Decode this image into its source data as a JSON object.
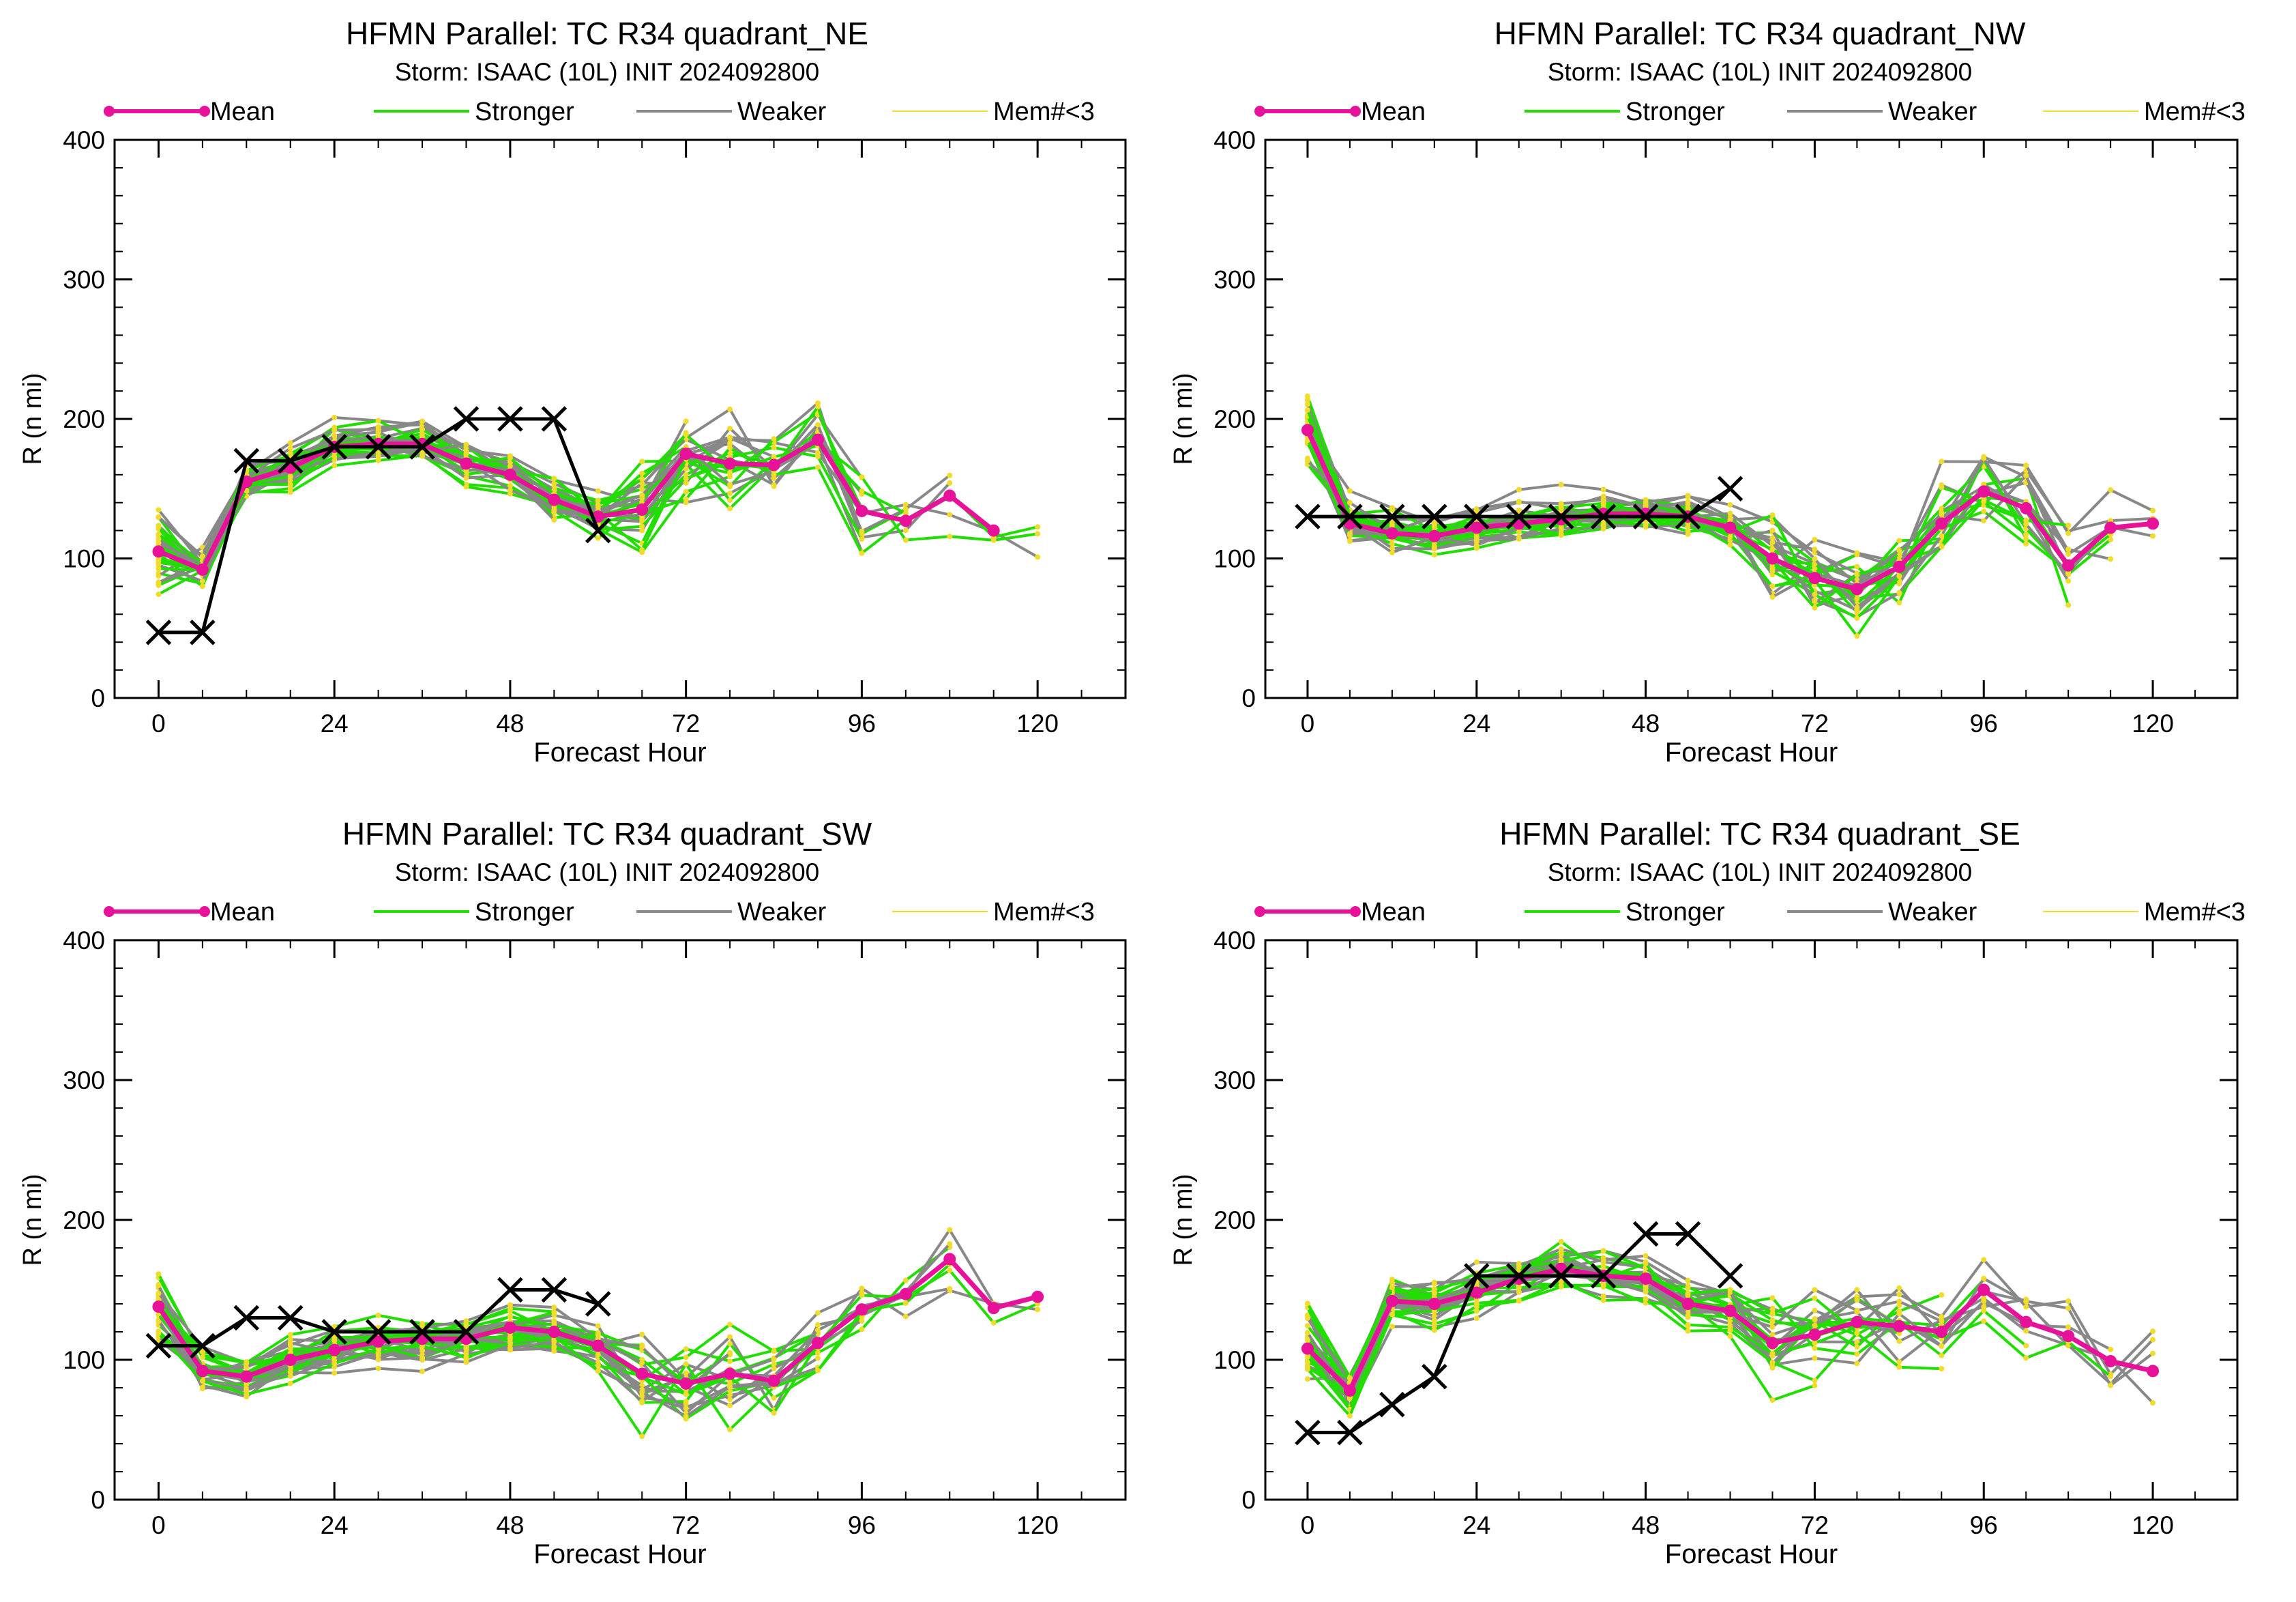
{
  "figure": {
    "panel_count": 4,
    "legend": [
      {
        "label": "Mean",
        "color": "#e8119a",
        "marker": "dot"
      },
      {
        "label": "Stronger",
        "color": "#22dd00"
      },
      {
        "label": "Weaker",
        "color": "#888888"
      },
      {
        "label": "Mem#<3",
        "color": "#f0dc2a"
      }
    ],
    "best_track_marker": "X"
  },
  "chart_data": [
    {
      "type": "line",
      "title": "HFMN Parallel: TC  R34 quadrant_NE",
      "subtitle": "Storm: ISAAC (10L) INIT 2024092800",
      "xlabel": "Forecast Hour",
      "ylabel": "R (n mi)",
      "xlim": [
        -6,
        132
      ],
      "ylim": [
        0,
        400
      ],
      "xticks": [
        0,
        24,
        48,
        72,
        96,
        120
      ],
      "yticks": [
        0,
        100,
        200,
        300,
        400
      ],
      "legend_position": "top",
      "series": [
        {
          "name": "Mean",
          "x": [
            0,
            6,
            12,
            18,
            24,
            30,
            36,
            42,
            48,
            54,
            60,
            66,
            72,
            78,
            84,
            90,
            96,
            102,
            108,
            114
          ],
          "y": [
            105,
            92,
            155,
            165,
            180,
            182,
            182,
            168,
            160,
            142,
            130,
            135,
            175,
            168,
            167,
            185,
            134,
            127,
            145,
            120
          ]
        },
        {
          "name": "Best Track",
          "x": [
            0,
            6,
            12,
            18,
            24,
            30,
            36,
            42,
            48,
            54,
            60
          ],
          "y": [
            47,
            47,
            170,
            170,
            180,
            180,
            180,
            200,
            200,
            200,
            120
          ]
        }
      ]
    },
    {
      "type": "line",
      "title": "HFMN Parallel: TC  R34 quadrant_NW",
      "subtitle": "Storm: ISAAC (10L) INIT 2024092800",
      "xlabel": "Forecast Hour",
      "ylabel": "R (n mi)",
      "xlim": [
        -6,
        132
      ],
      "ylim": [
        0,
        400
      ],
      "xticks": [
        0,
        24,
        48,
        72,
        96,
        120
      ],
      "yticks": [
        0,
        100,
        200,
        300,
        400
      ],
      "legend_position": "top",
      "series": [
        {
          "name": "Mean",
          "x": [
            0,
            6,
            12,
            18,
            24,
            30,
            36,
            42,
            48,
            54,
            60,
            66,
            72,
            78,
            84,
            90,
            96,
            102,
            108,
            114,
            120
          ],
          "y": [
            192,
            125,
            118,
            116,
            122,
            125,
            128,
            132,
            132,
            130,
            122,
            100,
            86,
            78,
            94,
            125,
            148,
            136,
            95,
            122,
            125
          ]
        },
        {
          "name": "Best Track",
          "x": [
            0,
            6,
            12,
            18,
            24,
            30,
            36,
            42,
            48,
            54,
            60
          ],
          "y": [
            130,
            130,
            130,
            130,
            130,
            130,
            130,
            130,
            130,
            130,
            150
          ]
        }
      ]
    },
    {
      "type": "line",
      "title": "HFMN Parallel: TC  R34 quadrant_SW",
      "subtitle": "Storm: ISAAC (10L) INIT 2024092800",
      "xlabel": "Forecast Hour",
      "ylabel": "R (n mi)",
      "xlim": [
        -6,
        132
      ],
      "ylim": [
        0,
        400
      ],
      "xticks": [
        0,
        24,
        48,
        72,
        96,
        120
      ],
      "yticks": [
        0,
        100,
        200,
        300,
        400
      ],
      "legend_position": "top",
      "series": [
        {
          "name": "Mean",
          "x": [
            0,
            6,
            12,
            18,
            24,
            30,
            36,
            42,
            48,
            54,
            60,
            66,
            72,
            78,
            84,
            90,
            96,
            102,
            108,
            114,
            120
          ],
          "y": [
            138,
            92,
            88,
            100,
            107,
            113,
            115,
            115,
            123,
            120,
            110,
            90,
            83,
            90,
            85,
            112,
            136,
            147,
            172,
            137,
            145
          ]
        },
        {
          "name": "Best Track",
          "x": [
            0,
            6,
            12,
            18,
            24,
            30,
            36,
            42,
            48,
            54,
            60
          ],
          "y": [
            110,
            110,
            130,
            130,
            120,
            120,
            120,
            120,
            150,
            150,
            140
          ]
        }
      ]
    },
    {
      "type": "line",
      "title": "HFMN Parallel: TC  R34 quadrant_SE",
      "subtitle": "Storm: ISAAC (10L) INIT 2024092800",
      "xlabel": "Forecast Hour",
      "ylabel": "R (n mi)",
      "xlim": [
        -6,
        132
      ],
      "ylim": [
        0,
        400
      ],
      "xticks": [
        0,
        24,
        48,
        72,
        96,
        120
      ],
      "yticks": [
        0,
        100,
        200,
        300,
        400
      ],
      "legend_position": "top",
      "series": [
        {
          "name": "Mean",
          "x": [
            0,
            6,
            12,
            18,
            24,
            30,
            36,
            42,
            48,
            54,
            60,
            66,
            72,
            78,
            84,
            90,
            96,
            102,
            108,
            114,
            120
          ],
          "y": [
            108,
            78,
            142,
            140,
            148,
            158,
            165,
            160,
            158,
            140,
            135,
            112,
            118,
            127,
            124,
            120,
            150,
            127,
            117,
            99,
            92
          ]
        },
        {
          "name": "Best Track",
          "x": [
            0,
            6,
            12,
            18,
            24,
            30,
            36,
            42,
            48,
            54,
            60
          ],
          "y": [
            48,
            48,
            68,
            88,
            160,
            160,
            160,
            160,
            190,
            190,
            160
          ]
        }
      ]
    }
  ]
}
